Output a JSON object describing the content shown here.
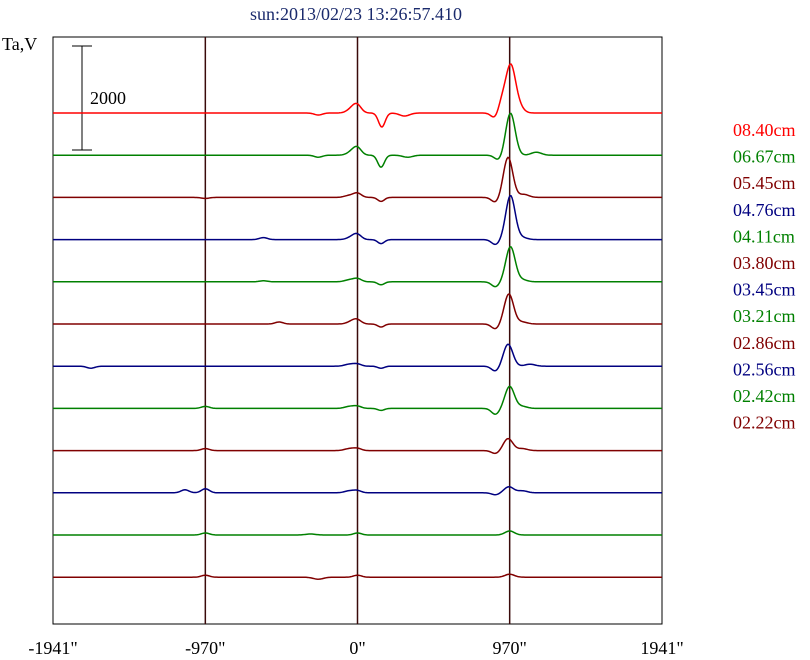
{
  "chart_data": {
    "type": "line",
    "title": "sun:2013/02/23 13:26:57.410",
    "ylabel": "Ta,V",
    "scale_bar_label": "2000",
    "x_ticks": [
      "-1941\"",
      "-970\"",
      "0\"",
      "970\"",
      "1941\""
    ],
    "x_tick_values": [
      -1941,
      -970,
      0,
      970,
      1941
    ],
    "xlim": [
      -1941,
      1941
    ],
    "vertical_lines": [
      -970,
      0,
      970
    ],
    "series": [
      {
        "name": "08.40cm",
        "color": "#ff0000",
        "baseline": 1000,
        "features": [
          [
            -250,
            -2,
            1.2
          ],
          [
            -30,
            5,
            1.5
          ],
          [
            0,
            6,
            1.2
          ],
          [
            155,
            -14,
            1.0
          ],
          [
            300,
            -3,
            1.5
          ],
          [
            880,
            -6,
            1.2
          ],
          [
            920,
            12,
            1.2
          ],
          [
            975,
            45,
            1.4
          ],
          [
            1020,
            8,
            1.5
          ]
        ]
      },
      {
        "name": "06.67cm",
        "color": "#008000",
        "baseline": 0,
        "features": [
          [
            -250,
            -2,
            1.2
          ],
          [
            -30,
            4,
            1.5
          ],
          [
            0,
            6,
            1.2
          ],
          [
            150,
            -12,
            1.0
          ],
          [
            320,
            -2,
            1.5
          ],
          [
            900,
            -5,
            1.2
          ],
          [
            975,
            42,
            1.4
          ],
          [
            1140,
            3,
            1.5
          ]
        ]
      },
      {
        "name": "05.45cm",
        "color": "#800000",
        "baseline": 0,
        "features": [
          [
            -970,
            -1,
            1.2
          ],
          [
            -50,
            2,
            1.5
          ],
          [
            0,
            4,
            1.2
          ],
          [
            150,
            -4,
            1.0
          ],
          [
            880,
            -5,
            1.2
          ],
          [
            960,
            40,
            1.4
          ],
          [
            1060,
            3,
            1.5
          ]
        ]
      },
      {
        "name": "04.76cm",
        "color": "#000080",
        "baseline": 0,
        "features": [
          [
            -600,
            2,
            1.2
          ],
          [
            -30,
            3,
            1.5
          ],
          [
            0,
            4,
            1.2
          ],
          [
            150,
            -4,
            1.0
          ],
          [
            880,
            -5,
            1.2
          ],
          [
            975,
            44,
            1.4
          ],
          [
            1050,
            2,
            1.5
          ]
        ]
      },
      {
        "name": "04.11cm",
        "color": "#008000",
        "baseline": 0,
        "features": [
          [
            -600,
            1,
            1.2
          ],
          [
            -50,
            2,
            1.5
          ],
          [
            0,
            3,
            1.2
          ],
          [
            150,
            -3,
            1.0
          ],
          [
            880,
            -5,
            1.2
          ],
          [
            975,
            35,
            1.4
          ],
          [
            1050,
            2,
            1.5
          ]
        ]
      },
      {
        "name": "03.80cm",
        "color": "#800000",
        "baseline": 0,
        "features": [
          [
            -500,
            2,
            1.2
          ],
          [
            -30,
            3,
            1.5
          ],
          [
            0,
            3,
            1.2
          ],
          [
            150,
            -3,
            1.0
          ],
          [
            880,
            -5,
            1.2
          ],
          [
            965,
            30,
            1.4
          ],
          [
            1050,
            2,
            1.5
          ]
        ]
      },
      {
        "name": "03.45cm",
        "color": "#000080",
        "baseline": 0,
        "features": [
          [
            -1700,
            -2,
            1.2
          ],
          [
            -50,
            2,
            1.5
          ],
          [
            0,
            2,
            1.2
          ],
          [
            150,
            -2,
            1.0
          ],
          [
            880,
            -5,
            1.2
          ],
          [
            960,
            22,
            1.4
          ],
          [
            1100,
            2,
            1.5
          ]
        ]
      },
      {
        "name": "03.21cm",
        "color": "#008000",
        "baseline": 0,
        "features": [
          [
            -970,
            2,
            1.2
          ],
          [
            -50,
            2,
            1.5
          ],
          [
            0,
            2,
            1.2
          ],
          [
            150,
            -2,
            1.0
          ],
          [
            880,
            -6,
            1.2
          ],
          [
            970,
            22,
            1.4
          ],
          [
            1050,
            2,
            1.5
          ]
        ]
      },
      {
        "name": "02.86cm",
        "color": "#800000",
        "baseline": 0,
        "features": [
          [
            -970,
            2,
            1.2
          ],
          [
            -50,
            2,
            1.5
          ],
          [
            0,
            2,
            1.2
          ],
          [
            880,
            -3,
            1.2
          ],
          [
            960,
            12,
            1.4
          ],
          [
            1050,
            2,
            1.5
          ]
        ]
      },
      {
        "name": "02.56cm",
        "color": "#000080",
        "baseline": 0,
        "features": [
          [
            -1100,
            3,
            1.2
          ],
          [
            -970,
            4,
            1.2
          ],
          [
            -50,
            2,
            1.5
          ],
          [
            0,
            2,
            1.2
          ],
          [
            880,
            -2,
            1.2
          ],
          [
            965,
            6,
            1.4
          ],
          [
            1050,
            2,
            1.5
          ]
        ]
      },
      {
        "name": "02.42cm",
        "color": "#008000",
        "baseline": 0,
        "features": [
          [
            -970,
            2,
            1.2
          ],
          [
            -300,
            1,
            1.5
          ],
          [
            0,
            2,
            1.2
          ],
          [
            970,
            4,
            1.4
          ]
        ]
      },
      {
        "name": "02.22cm",
        "color": "#800000",
        "baseline": 0,
        "features": [
          [
            -970,
            2,
            1.2
          ],
          [
            -250,
            -2,
            1.5
          ],
          [
            0,
            2,
            1.2
          ],
          [
            970,
            3,
            1.4
          ]
        ]
      }
    ],
    "grid": false,
    "legend_position": "right"
  }
}
